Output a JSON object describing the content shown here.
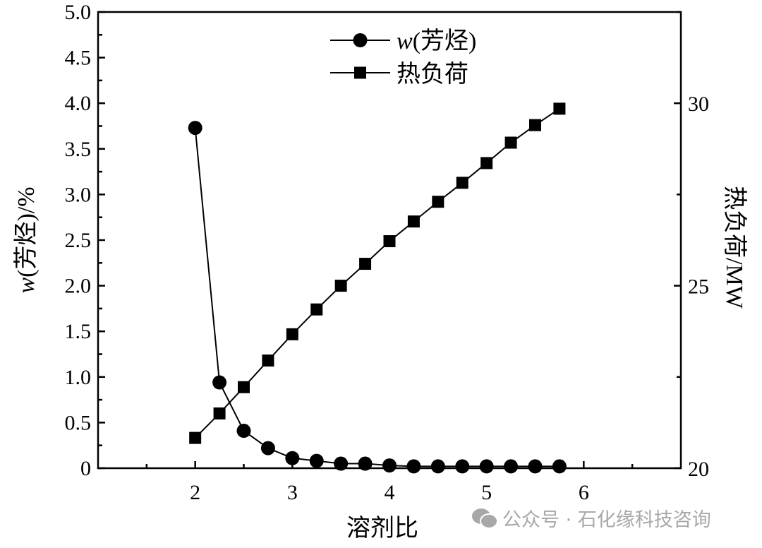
{
  "chart_data": {
    "type": "line",
    "title": "",
    "xlabel": "溶剂比",
    "ylabel_left": "w(芳烃)/%",
    "ylabel_left_italic_part": "w",
    "ylabel_left_rest": "(芳烃)/%",
    "ylabel_right": "热负荷/MW",
    "xlim": [
      1,
      7
    ],
    "ylim_left": [
      0,
      5
    ],
    "ylim_right": [
      20,
      32.5
    ],
    "x_ticks": [
      "2",
      "3",
      "4",
      "5",
      "6"
    ],
    "y_left_ticks": [
      "0",
      "0.5",
      "1.0",
      "1.5",
      "2.0",
      "2.5",
      "3.0",
      "3.5",
      "4.0",
      "4.5",
      "5.0"
    ],
    "y_right_ticks": [
      "20",
      "25",
      "30"
    ],
    "grid": false,
    "legend_position": "top-center",
    "x": [
      2,
      2.25,
      2.5,
      2.75,
      3,
      3.25,
      3.5,
      3.75,
      4,
      4.25,
      4.5,
      4.75,
      5,
      5.25,
      5.5,
      5.75
    ],
    "series": [
      {
        "name": "w(芳烃)",
        "name_italic": "w",
        "name_rest": "(芳烃)",
        "axis": "left",
        "marker": "circle",
        "values": [
          3.73,
          0.94,
          0.41,
          0.22,
          0.11,
          0.08,
          0.05,
          0.05,
          0.03,
          0.02,
          0.02,
          0.02,
          0.02,
          0.02,
          0.02,
          0.02
        ]
      },
      {
        "name": "热负荷",
        "axis": "right",
        "marker": "square",
        "values": [
          20.83,
          21.5,
          22.22,
          22.95,
          23.67,
          24.35,
          25.0,
          25.6,
          26.22,
          26.76,
          27.3,
          27.82,
          28.36,
          28.92,
          29.4,
          29.85
        ]
      }
    ],
    "colors": {
      "line": "#000000",
      "watermark": "#a8a8a8"
    }
  },
  "watermark": {
    "text": "公众号 · 石化缘科技咨询",
    "icon": "wechat-icon"
  }
}
